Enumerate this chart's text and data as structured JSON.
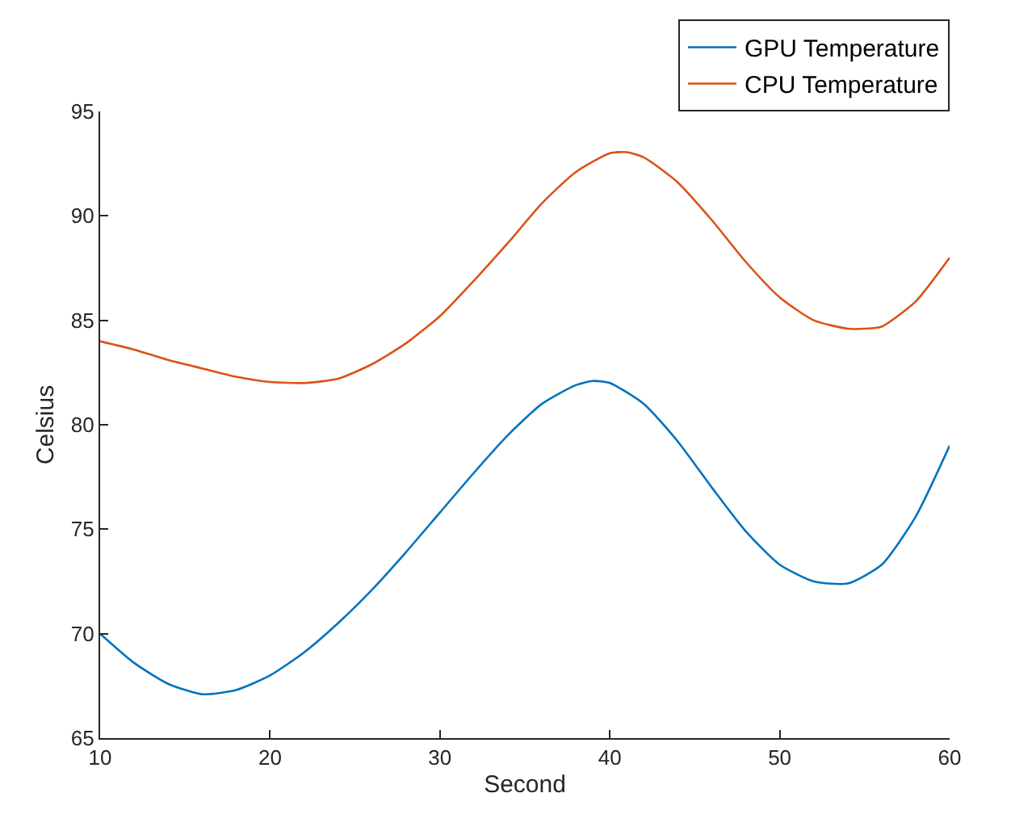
{
  "chart_data": {
    "type": "line",
    "xlabel": "Second",
    "ylabel": "Celsius",
    "xlim": [
      10,
      60
    ],
    "xticks": [
      10,
      20,
      30,
      40,
      50,
      60
    ],
    "ylim": [
      65,
      95
    ],
    "yticks": [
      65,
      70,
      75,
      80,
      85,
      90,
      95
    ],
    "grid": false,
    "legend": "top right",
    "marker": "none",
    "line_style": "solid",
    "x": [
      10,
      12,
      14,
      16,
      18,
      20,
      22,
      24,
      26,
      28,
      30,
      32,
      34,
      36,
      38,
      39,
      40,
      42,
      44,
      46,
      48,
      50,
      52,
      54,
      56,
      58,
      60
    ],
    "series": [
      {
        "name": "GPU Temperature",
        "color": "#0072bd",
        "values": [
          70,
          68.6,
          67.6,
          67.1,
          67.3,
          68.0,
          69.1,
          70.5,
          72.1,
          73.9,
          75.8,
          77.7,
          79.5,
          81.0,
          81.9,
          82.1,
          82.0,
          81.0,
          79.2,
          77.0,
          74.9,
          73.3,
          72.5,
          72.4,
          73.3,
          75.6,
          79
        ]
      },
      {
        "name": "CPU Temperature",
        "color": "#d95319",
        "x": [
          10,
          12,
          14,
          16,
          18,
          20,
          22,
          24,
          26,
          28,
          30,
          32,
          34,
          36,
          38,
          40,
          41,
          42,
          44,
          46,
          48,
          50,
          52,
          54,
          55,
          56,
          58,
          60
        ],
        "values": [
          84.0,
          83.6,
          83.1,
          82.7,
          82.3,
          82.05,
          82.0,
          82.2,
          82.9,
          83.9,
          85.2,
          86.9,
          88.7,
          90.6,
          92.1,
          93.0,
          93.05,
          92.8,
          91.6,
          89.8,
          87.8,
          86.1,
          85.0,
          84.6,
          84.6,
          84.7,
          85.9,
          88
        ]
      }
    ]
  }
}
